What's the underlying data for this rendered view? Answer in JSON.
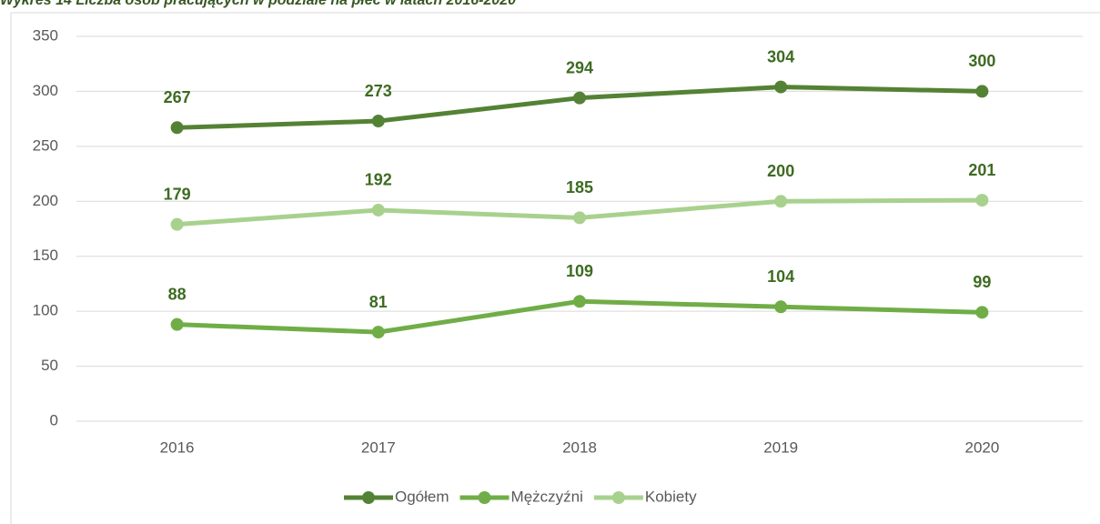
{
  "chart_data": {
    "type": "line",
    "title": "Wykres 14 Liczba osób pracujących w podziale na płeć w latach 2016-2020",
    "categories": [
      "2016",
      "2017",
      "2018",
      "2019",
      "2020"
    ],
    "series": [
      {
        "name": "Ogółem",
        "color": "#548235",
        "values": [
          267,
          273,
          294,
          304,
          300
        ]
      },
      {
        "name": "Mężczyźni",
        "color": "#70ad47",
        "values": [
          88,
          81,
          109,
          104,
          99
        ]
      },
      {
        "name": "Kobiety",
        "color": "#a9d18e",
        "values": [
          179,
          192,
          185,
          200,
          201
        ]
      }
    ],
    "ylim": [
      0,
      350
    ],
    "yticks": [
      0,
      50,
      100,
      150,
      200,
      250,
      300,
      350
    ],
    "grid": true,
    "legend": "bottom",
    "label_color": "#3e6b22"
  }
}
